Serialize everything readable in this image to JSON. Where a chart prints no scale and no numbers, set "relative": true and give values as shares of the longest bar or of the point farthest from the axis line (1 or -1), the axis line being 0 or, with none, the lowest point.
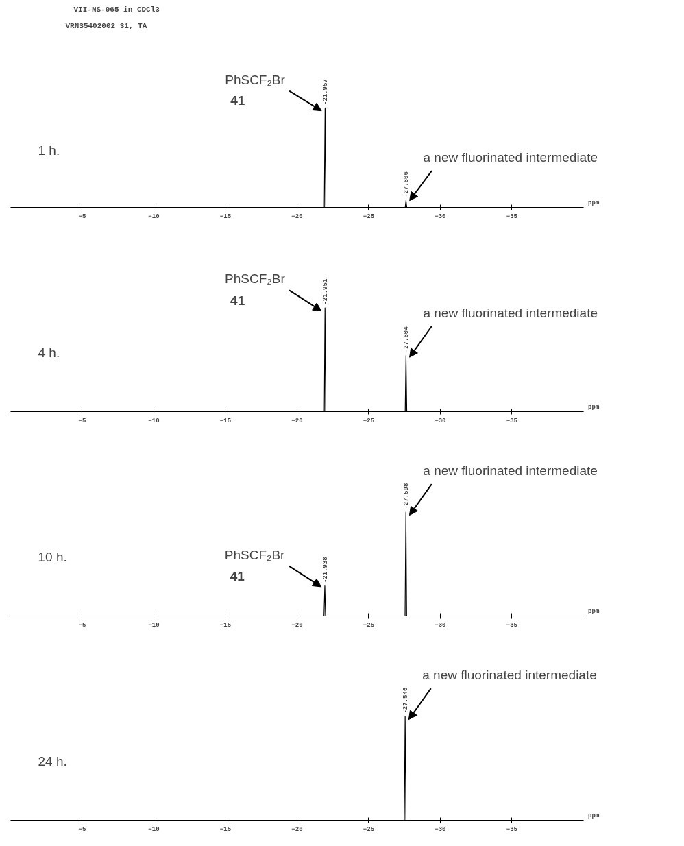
{
  "chart_data": [
    {
      "type": "line",
      "title": "VII-NS-065 in CDCl3",
      "subtitle": "VRNS5402002 31, TA",
      "relative": true,
      "color": "#000000",
      "x": [
        0,
        -21.9,
        -21.957,
        -22.01,
        -27.55,
        -27.606,
        -27.66,
        -40
      ],
      "values": [
        0,
        0,
        1,
        0,
        0,
        0.07,
        0,
        0
      ],
      "xlim": [
        0,
        -40
      ],
      "xticks": [
        -5,
        -10,
        -15,
        -20,
        -25,
        -30,
        -35
      ],
      "xlabel": "ppm",
      "grid": false,
      "annotations": [
        {
          "text": "-21.957",
          "x": -21.957,
          "y": 1
        },
        {
          "text": "-27.606",
          "x": -27.606,
          "y": 0.07
        },
        {
          "text": "PhSCF₂Br\n41",
          "x": -21.957,
          "y": 1
        },
        {
          "text": "a new fluorinated intermediate",
          "x": -27.606,
          "y": 0.07
        },
        "1 h."
      ]
    },
    {
      "type": "line",
      "relative": true,
      "color": "#000000",
      "x": [
        0,
        -21.9,
        -21.951,
        -22.0,
        -27.55,
        -27.604,
        -27.66,
        -40
      ],
      "values": [
        0,
        0,
        1,
        0,
        0,
        0.54,
        0,
        0
      ],
      "xlim": [
        0,
        -40
      ],
      "xticks": [
        -5,
        -10,
        -15,
        -20,
        -25,
        -30,
        -35
      ],
      "xlabel": "ppm",
      "grid": false,
      "annotations": [
        {
          "text": "-21.951",
          "x": -21.951,
          "y": 1
        },
        {
          "text": "-27.604",
          "x": -27.604,
          "y": 0.54
        },
        {
          "text": "PhSCF₂Br\n41",
          "x": -21.951,
          "y": 1
        },
        {
          "text": "a new fluorinated intermediate",
          "x": -27.604,
          "y": 0.54
        },
        "4 h."
      ]
    },
    {
      "type": "line",
      "relative": true,
      "color": "#000000",
      "x": [
        0,
        -21.88,
        -21.938,
        -21.99,
        -27.54,
        -27.598,
        -27.65,
        -40
      ],
      "values": [
        0,
        0,
        0.29,
        0,
        0,
        1,
        0,
        0
      ],
      "xlim": [
        0,
        -40
      ],
      "xticks": [
        -5,
        -10,
        -15,
        -20,
        -25,
        -30,
        -35
      ],
      "xlabel": "ppm",
      "grid": false,
      "annotations": [
        {
          "text": "-21.938",
          "x": -21.938,
          "y": 0.29
        },
        {
          "text": "-27.598",
          "x": -27.598,
          "y": 1
        },
        {
          "text": "PhSCF₂Br\n41",
          "x": -21.938,
          "y": 0.29
        },
        {
          "text": "a new fluorinated intermediate",
          "x": -27.598,
          "y": 1
        },
        "10 h."
      ]
    },
    {
      "type": "line",
      "relative": true,
      "color": "#000000",
      "x": [
        0,
        -27.49,
        -27.546,
        -27.6,
        -40
      ],
      "values": [
        0,
        0,
        1,
        0,
        0
      ],
      "xlim": [
        0,
        -40
      ],
      "xticks": [
        -5,
        -10,
        -15,
        -20,
        -25,
        -30,
        -35
      ],
      "xlabel": "ppm",
      "grid": false,
      "annotations": [
        {
          "text": "-27.546",
          "x": -27.546,
          "y": 1
        },
        {
          "text": "a new fluorinated intermediate",
          "x": -27.546,
          "y": 1
        },
        "24 h."
      ]
    }
  ]
}
